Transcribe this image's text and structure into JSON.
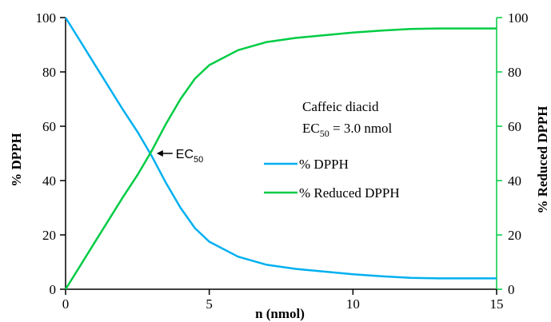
{
  "chart_data": {
    "type": "line",
    "xlabel": "n (nmol)",
    "ylabel_left": "% DPPH",
    "ylabel_right": "% Reduced DPPH",
    "xlim": [
      0,
      15
    ],
    "ylim_left": [
      0,
      100
    ],
    "ylim_right": [
      0,
      100
    ],
    "x_ticks": [
      "0",
      "5",
      "10",
      "15"
    ],
    "y_ticks_left": [
      "0",
      "20",
      "40",
      "60",
      "80",
      "100"
    ],
    "y_ticks_right": [
      "0",
      "20",
      "40",
      "60",
      "80",
      "100"
    ],
    "grid": false,
    "legend_placement": "center-right",
    "colors": {
      "dpph": "#00b0f0",
      "reduced": "#00cc44",
      "left_axis": "#000000",
      "right_axis": "#00cc44"
    },
    "series": [
      {
        "name": "% DPPH",
        "x": [
          0,
          0.5,
          1,
          1.5,
          2,
          2.5,
          3,
          3.5,
          4,
          4.5,
          5,
          6,
          7,
          8,
          9,
          10,
          11,
          12,
          13,
          14,
          15
        ],
        "y": [
          100,
          91.5,
          83,
          74.5,
          66,
          58,
          49,
          39,
          30,
          22.5,
          17.5,
          12,
          9,
          7.5,
          6.5,
          5.5,
          4.8,
          4.2,
          4,
          4,
          4
        ]
      },
      {
        "name": "% Reduced DPPH",
        "x": [
          0,
          0.5,
          1,
          1.5,
          2,
          2.5,
          3,
          3.5,
          4,
          4.5,
          5,
          6,
          7,
          8,
          9,
          10,
          11,
          12,
          13,
          14,
          15
        ],
        "y": [
          0,
          8.5,
          17,
          25.5,
          34,
          42,
          51,
          61,
          70,
          77.5,
          82.5,
          88,
          91,
          92.5,
          93.5,
          94.5,
          95.2,
          95.8,
          96,
          96,
          96
        ]
      }
    ],
    "annotations": {
      "compound": "Caffeic diacid",
      "ec50_prefix": "EC",
      "ec50_sub": "50",
      "ec50_value": " = 3.0 nmol",
      "arrow_label_prefix": "EC",
      "arrow_label_sub": "50",
      "arrow_x": 3.0,
      "arrow_y": 50
    }
  }
}
